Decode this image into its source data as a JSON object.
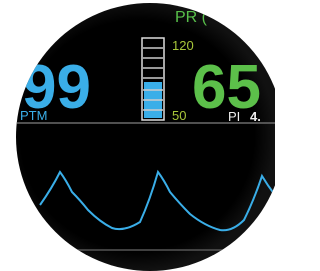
{
  "display": {
    "spo2": "99",
    "pr_label": "PR (",
    "pr": "65",
    "scale_high": "120",
    "scale_low": "50",
    "wave_label": "PTM",
    "pi_label": "PI",
    "pi_value": "4."
  }
}
